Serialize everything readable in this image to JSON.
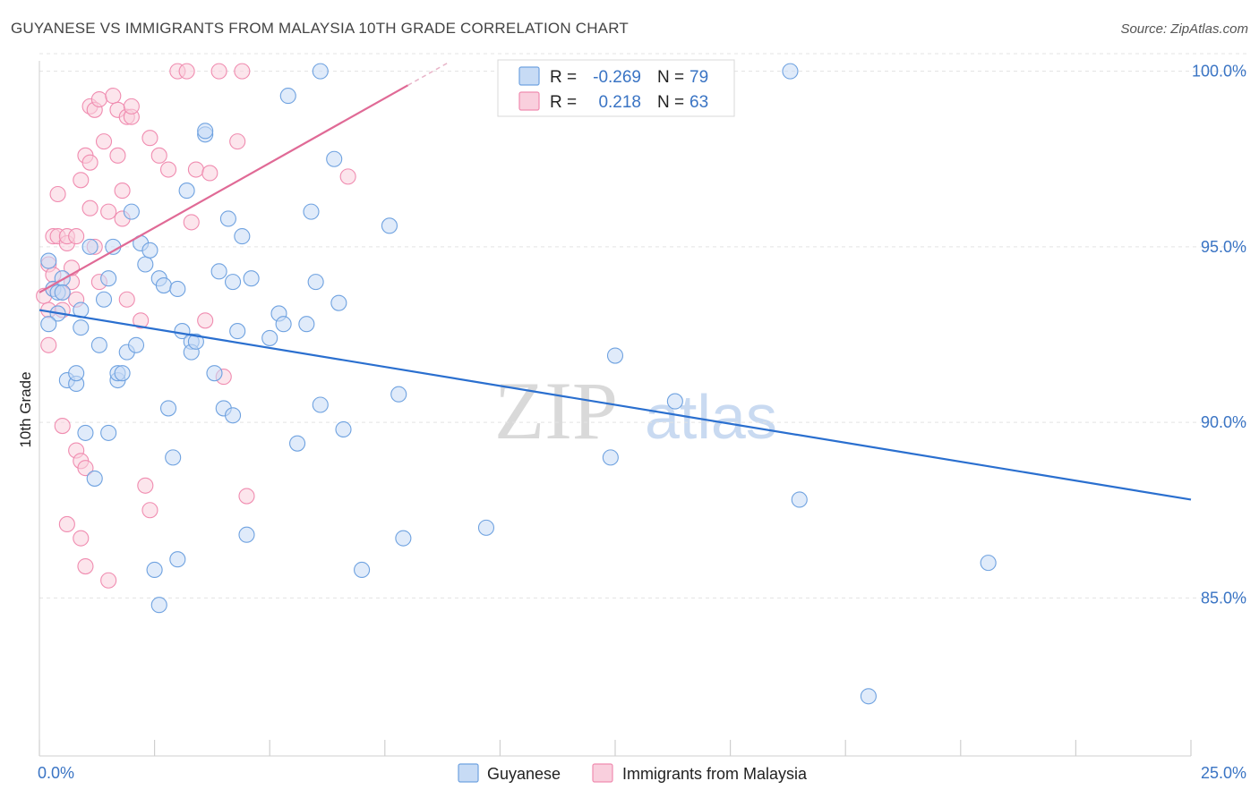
{
  "header": {
    "title": "GUYANESE VS IMMIGRANTS FROM MALAYSIA 10TH GRADE CORRELATION CHART",
    "source": "Source: ZipAtlas.com"
  },
  "watermark": {
    "zip": "ZIP",
    "atlas": "atlas"
  },
  "colors": {
    "blue": "#6fa2e0",
    "blue_fill": "#c7dbf5",
    "blue_line": "#2a6fcf",
    "pink": "#f08cb0",
    "pink_fill": "#f9cfdd",
    "pink_line": "#e06a96",
    "tick": "#3a74c4",
    "grid": "#e3e3e3"
  },
  "legend": {
    "r_label": "R =",
    "n_label": "N =",
    "series": [
      {
        "r": "-0.269",
        "n": "79"
      },
      {
        "r": "0.218",
        "n": "63"
      }
    ]
  },
  "chart_data": {
    "type": "scatter",
    "title": "GUYANESE VS IMMIGRANTS FROM MALAYSIA 10TH GRADE CORRELATION CHART",
    "xlabel": "",
    "ylabel": "10th Grade",
    "xlim": [
      0,
      25
    ],
    "ylim": [
      80.5,
      100.5
    ],
    "x_tick_labels": [
      "0.0%",
      "25.0%"
    ],
    "y_ticks": [
      85,
      90,
      95,
      100
    ],
    "y_tick_labels": [
      "85.0%",
      "90.0%",
      "95.0%",
      "100.0%"
    ],
    "grid": true,
    "legend_labels": [
      "Guyanese",
      "Immigrants from Malaysia"
    ],
    "series": [
      {
        "name": "Guyanese",
        "r": -0.269,
        "n": 79,
        "trend": {
          "x": [
            0,
            25
          ],
          "y": [
            93.2,
            87.8
          ]
        },
        "points": [
          [
            0.2,
            94.6
          ],
          [
            0.3,
            93.8
          ],
          [
            0.4,
            93.1
          ],
          [
            0.4,
            93.7
          ],
          [
            0.5,
            94.1
          ],
          [
            0.5,
            93.7
          ],
          [
            0.6,
            91.2
          ],
          [
            0.8,
            91.1
          ],
          [
            0.8,
            91.4
          ],
          [
            0.9,
            92.7
          ],
          [
            0.9,
            93.2
          ],
          [
            1.0,
            89.7
          ],
          [
            1.1,
            95.0
          ],
          [
            1.2,
            88.4
          ],
          [
            1.3,
            92.2
          ],
          [
            1.4,
            93.5
          ],
          [
            1.5,
            89.7
          ],
          [
            1.5,
            94.1
          ],
          [
            1.6,
            95.0
          ],
          [
            1.7,
            91.2
          ],
          [
            1.7,
            91.4
          ],
          [
            1.8,
            91.4
          ],
          [
            1.9,
            92.0
          ],
          [
            2.0,
            96.0
          ],
          [
            2.1,
            92.2
          ],
          [
            2.2,
            95.1
          ],
          [
            2.3,
            94.5
          ],
          [
            2.4,
            94.9
          ],
          [
            2.5,
            85.8
          ],
          [
            2.6,
            84.8
          ],
          [
            2.6,
            94.1
          ],
          [
            2.7,
            93.9
          ],
          [
            2.8,
            90.4
          ],
          [
            2.9,
            89.0
          ],
          [
            3.0,
            86.1
          ],
          [
            3.0,
            93.8
          ],
          [
            3.1,
            92.6
          ],
          [
            3.2,
            96.6
          ],
          [
            3.3,
            92.3
          ],
          [
            3.3,
            92.0
          ],
          [
            3.4,
            92.3
          ],
          [
            3.6,
            98.2
          ],
          [
            3.6,
            98.3
          ],
          [
            3.8,
            91.4
          ],
          [
            3.9,
            94.3
          ],
          [
            4.0,
            90.4
          ],
          [
            4.1,
            95.8
          ],
          [
            4.2,
            90.2
          ],
          [
            4.2,
            94.0
          ],
          [
            4.3,
            92.6
          ],
          [
            4.4,
            95.3
          ],
          [
            4.5,
            86.8
          ],
          [
            4.6,
            94.1
          ],
          [
            5.0,
            92.4
          ],
          [
            5.2,
            93.1
          ],
          [
            5.3,
            92.8
          ],
          [
            5.4,
            99.3
          ],
          [
            5.6,
            89.4
          ],
          [
            5.8,
            92.8
          ],
          [
            5.9,
            96.0
          ],
          [
            6.0,
            94.0
          ],
          [
            6.1,
            90.5
          ],
          [
            6.1,
            100.0
          ],
          [
            6.4,
            97.5
          ],
          [
            6.5,
            93.4
          ],
          [
            6.6,
            89.8
          ],
          [
            7.0,
            85.8
          ],
          [
            7.6,
            95.6
          ],
          [
            7.8,
            90.8
          ],
          [
            7.9,
            86.7
          ],
          [
            9.7,
            87.0
          ],
          [
            12.4,
            89.0
          ],
          [
            12.5,
            91.9
          ],
          [
            13.8,
            90.6
          ],
          [
            16.3,
            100.0
          ],
          [
            16.5,
            87.8
          ],
          [
            18.0,
            82.2
          ],
          [
            20.6,
            86.0
          ],
          [
            0.2,
            92.8
          ]
        ]
      },
      {
        "name": "Immigrants from Malaysia",
        "r": 0.218,
        "n": 63,
        "trend": {
          "x": [
            0,
            8
          ],
          "y": [
            93.7,
            99.6
          ]
        },
        "points": [
          [
            0.1,
            93.6
          ],
          [
            0.2,
            94.5
          ],
          [
            0.2,
            93.2
          ],
          [
            0.2,
            92.2
          ],
          [
            0.3,
            95.3
          ],
          [
            0.3,
            93.8
          ],
          [
            0.3,
            94.2
          ],
          [
            0.4,
            96.5
          ],
          [
            0.4,
            95.3
          ],
          [
            0.5,
            93.2
          ],
          [
            0.5,
            93.7
          ],
          [
            0.5,
            89.9
          ],
          [
            0.6,
            95.1
          ],
          [
            0.6,
            87.1
          ],
          [
            0.6,
            95.3
          ],
          [
            0.7,
            94.0
          ],
          [
            0.7,
            94.4
          ],
          [
            0.8,
            95.3
          ],
          [
            0.8,
            89.2
          ],
          [
            0.8,
            93.5
          ],
          [
            0.9,
            96.9
          ],
          [
            0.9,
            86.7
          ],
          [
            0.9,
            88.9
          ],
          [
            1.0,
            97.6
          ],
          [
            1.0,
            88.7
          ],
          [
            1.0,
            85.9
          ],
          [
            1.1,
            97.4
          ],
          [
            1.1,
            96.1
          ],
          [
            1.1,
            99.0
          ],
          [
            1.2,
            95.0
          ],
          [
            1.2,
            98.9
          ],
          [
            1.3,
            94.0
          ],
          [
            1.3,
            99.2
          ],
          [
            1.4,
            98.0
          ],
          [
            1.5,
            85.5
          ],
          [
            1.5,
            96.0
          ],
          [
            1.6,
            99.3
          ],
          [
            1.7,
            97.6
          ],
          [
            1.7,
            98.9
          ],
          [
            1.8,
            95.8
          ],
          [
            1.8,
            96.6
          ],
          [
            1.9,
            98.7
          ],
          [
            1.9,
            93.5
          ],
          [
            2.0,
            98.7
          ],
          [
            2.0,
            99.0
          ],
          [
            2.2,
            92.9
          ],
          [
            2.3,
            88.2
          ],
          [
            2.4,
            87.5
          ],
          [
            2.4,
            98.1
          ],
          [
            2.6,
            97.6
          ],
          [
            2.8,
            97.2
          ],
          [
            3.0,
            100.0
          ],
          [
            3.2,
            100.0
          ],
          [
            3.3,
            95.7
          ],
          [
            3.4,
            97.2
          ],
          [
            3.6,
            92.9
          ],
          [
            3.7,
            97.1
          ],
          [
            3.9,
            100.0
          ],
          [
            4.0,
            91.3
          ],
          [
            4.3,
            98.0
          ],
          [
            4.4,
            100.0
          ],
          [
            4.5,
            87.9
          ],
          [
            6.7,
            97.0
          ]
        ]
      }
    ]
  }
}
